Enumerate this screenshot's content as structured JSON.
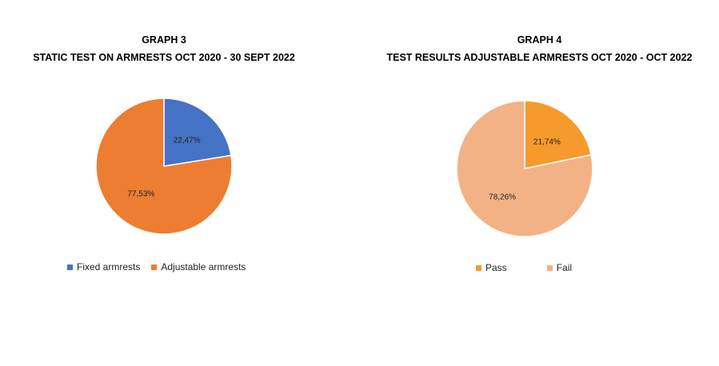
{
  "chart_data": [
    {
      "type": "pie",
      "title": "GRAPH 3",
      "subtitle": "STATIC TEST ON ARMRESTS OCT 2020 - 30 SEPT  2022",
      "categories": [
        "Fixed armrests",
        "Adjustable armrests"
      ],
      "values": [
        22.47,
        77.53
      ],
      "data_labels": [
        "22,47%",
        "77,53%"
      ],
      "colors": [
        "#4472C4",
        "#ED7D31"
      ],
      "legend_position": "bottom"
    },
    {
      "type": "pie",
      "title": "GRAPH 4",
      "subtitle": "TEST RESULTS ADJUSTABLE ARMRESTS OCT 2020 - OCT 2022",
      "categories": [
        "Pass",
        "Fail"
      ],
      "values": [
        21.74,
        78.26
      ],
      "data_labels": [
        "21,74%",
        "78,26%"
      ],
      "colors": [
        "#F79A2C",
        "#F2B285"
      ],
      "legend_position": "bottom"
    }
  ]
}
